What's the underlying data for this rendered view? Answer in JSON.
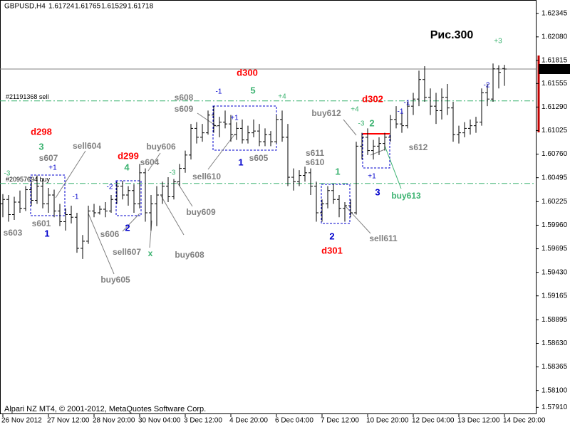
{
  "chart_data": {
    "type": "ohlc",
    "symbol": "GBPUSD,H4",
    "title": "Рис.300",
    "footer": "Alpari NZ MT4, © 2001-2012, MetaQuotes Software Corp.",
    "color": "#000000",
    "grid": false,
    "categories": [
      "26 Nov 2012",
      null,
      null,
      null,
      null,
      null,
      null,
      null,
      "27 Nov 12:00",
      null,
      null,
      null,
      null,
      null,
      null,
      null,
      "28 Nov 20:00",
      null,
      null,
      null,
      null,
      null,
      null,
      null,
      "30 Nov 04:00",
      null,
      null,
      null,
      null,
      null,
      null,
      null,
      "3 Dec 12:00",
      null,
      null,
      null,
      null,
      null,
      null,
      null,
      "4 Dec 20:00",
      null,
      null,
      null,
      null,
      null,
      null,
      null,
      "6 Dec 04:00",
      null,
      null,
      null,
      null,
      null,
      null,
      null,
      "7 Dec 12:00",
      null,
      null,
      null,
      null,
      null,
      null,
      null,
      "10 Dec 20:00",
      null,
      null,
      null,
      null,
      null,
      null,
      null,
      "12 Dec 04:00",
      null,
      null,
      null,
      null,
      null,
      null,
      null,
      "13 Dec 12:00",
      null,
      null,
      null,
      null,
      null,
      null,
      null,
      "14 Dec 20:00"
    ],
    "open": [
      1.602,
      1.6025,
      1.6008,
      1.6022,
      1.6015,
      1.6036,
      1.6024,
      1.604,
      1.602,
      1.603,
      1.6012,
      1.6,
      1.6008,
      1.6005,
      1.597,
      1.5978,
      1.6012,
      1.601,
      1.6014,
      1.6012,
      1.6025,
      1.604,
      1.603,
      1.6035,
      1.602,
      1.6055,
      1.601,
      1.602,
      1.603,
      1.604,
      1.6028,
      1.6045,
      1.606,
      1.6075,
      1.6105,
      1.6095,
      1.61,
      1.612,
      1.6108,
      1.6112,
      1.611,
      1.6098,
      1.6105,
      1.6092,
      1.61,
      1.6102,
      1.609,
      1.6098,
      1.609,
      1.6115,
      1.6095,
      1.605,
      1.6045,
      1.6052,
      1.6055,
      1.604,
      1.601,
      1.602,
      1.6035,
      1.6025,
      1.6015,
      1.6018,
      1.601,
      1.6085,
      1.6095,
      1.608,
      1.6085,
      1.6088,
      1.6095,
      1.6115,
      1.611,
      1.6108,
      1.613,
      1.6138,
      1.616,
      1.614,
      1.613,
      1.6125,
      1.614,
      1.6128,
      1.6098,
      1.61,
      1.6105,
      1.6108,
      1.6112,
      1.6145,
      1.6138,
      1.6172,
      1.61724
    ],
    "high": [
      1.6031,
      1.603,
      1.6028,
      1.6035,
      1.604,
      1.6045,
      1.6052,
      1.6048,
      1.6038,
      1.6036,
      1.602,
      1.6015,
      1.6018,
      1.601,
      1.5985,
      1.6018,
      1.602,
      1.6018,
      1.6022,
      1.603,
      1.6045,
      1.6046,
      1.604,
      1.6042,
      1.6065,
      1.606,
      1.603,
      1.604,
      1.6045,
      1.605,
      1.6048,
      1.6065,
      1.608,
      1.611,
      1.6112,
      1.611,
      1.6125,
      1.613,
      1.6118,
      1.6125,
      1.612,
      1.6112,
      1.6115,
      1.6108,
      1.6115,
      1.611,
      1.6105,
      1.6102,
      1.612,
      1.6125,
      1.611,
      1.606,
      1.6058,
      1.6062,
      1.606,
      1.6045,
      1.6025,
      1.604,
      1.6042,
      1.603,
      1.6022,
      1.6025,
      1.609,
      1.61,
      1.6105,
      1.6092,
      1.6095,
      1.61,
      1.612,
      1.613,
      1.6125,
      1.6135,
      1.6145,
      1.617,
      1.6175,
      1.615,
      1.6145,
      1.615,
      1.6155,
      1.6135,
      1.6108,
      1.6112,
      1.6115,
      1.6118,
      1.615,
      1.6155,
      1.6178,
      1.6176,
      1.61765
    ],
    "low": [
      1.6005,
      1.6,
      1.6002,
      1.601,
      1.6012,
      1.6018,
      1.602,
      1.6015,
      1.601,
      1.6005,
      1.5995,
      1.599,
      1.5998,
      1.5965,
      1.5958,
      1.5975,
      1.6005,
      1.6008,
      1.6005,
      1.601,
      1.602,
      1.6025,
      1.6018,
      1.601,
      1.6015,
      1.6,
      1.599,
      1.5995,
      1.602,
      1.6022,
      1.6025,
      1.604,
      1.6055,
      1.607,
      1.6088,
      1.609,
      1.6098,
      1.61,
      1.6095,
      1.6105,
      1.609,
      1.6092,
      1.6088,
      1.6088,
      1.6095,
      1.6085,
      1.6085,
      1.6085,
      1.6088,
      1.609,
      1.604,
      1.6035,
      1.604,
      1.6045,
      1.603,
      1.6,
      1.6,
      1.6015,
      1.602,
      1.6005,
      1.6,
      1.6005,
      1.6008,
      1.607,
      1.6075,
      1.607,
      1.6075,
      1.608,
      1.609,
      1.6105,
      1.61,
      1.6105,
      1.612,
      1.613,
      1.6135,
      1.612,
      1.611,
      1.6115,
      1.612,
      1.609,
      1.6088,
      1.6095,
      1.6098,
      1.61,
      1.6108,
      1.613,
      1.6135,
      1.615,
      1.61529
    ],
    "close": [
      1.6025,
      1.6008,
      1.6022,
      1.6015,
      1.6036,
      1.6024,
      1.604,
      1.602,
      1.603,
      1.6012,
      1.6,
      1.6008,
      1.6005,
      1.597,
      1.5978,
      1.6012,
      1.601,
      1.6014,
      1.6012,
      1.6025,
      1.604,
      1.603,
      1.6035,
      1.602,
      1.6055,
      1.601,
      1.602,
      1.603,
      1.604,
      1.6028,
      1.6045,
      1.606,
      1.6075,
      1.6105,
      1.6095,
      1.61,
      1.612,
      1.6108,
      1.6112,
      1.611,
      1.6098,
      1.6105,
      1.6092,
      1.61,
      1.6102,
      1.609,
      1.6098,
      1.609,
      1.6115,
      1.6095,
      1.605,
      1.6045,
      1.6052,
      1.6055,
      1.604,
      1.601,
      1.602,
      1.6035,
      1.6025,
      1.6015,
      1.6018,
      1.601,
      1.6085,
      1.6095,
      1.608,
      1.6085,
      1.6088,
      1.6095,
      1.6115,
      1.611,
      1.6108,
      1.613,
      1.6138,
      1.616,
      1.614,
      1.613,
      1.6125,
      1.614,
      1.6128,
      1.6098,
      1.61,
      1.6105,
      1.6108,
      1.6112,
      1.6145,
      1.6138,
      1.6172,
      1.6168,
      1.61718
    ],
    "ylim": [
      1.57833,
      1.62495
    ],
    "yticks": [
      {
        "value": 1.62345,
        "label": "1.62345"
      },
      {
        "value": 1.6208,
        "label": "1.62080"
      },
      {
        "value": 1.61815,
        "label": "1.61815"
      },
      {
        "value": 1.61555,
        "label": "1.61555"
      },
      {
        "value": 1.6129,
        "label": "1.61290"
      },
      {
        "value": 1.61025,
        "label": "1.61025"
      },
      {
        "value": 1.6076,
        "label": "1.60760"
      },
      {
        "value": 1.60495,
        "label": "1.60495"
      },
      {
        "value": 1.60225,
        "label": "1.60225"
      },
      {
        "value": 1.5996,
        "label": "1.59960"
      },
      {
        "value": 1.59695,
        "label": "1.59695"
      },
      {
        "value": 1.5943,
        "label": "1.59430"
      },
      {
        "value": 1.59165,
        "label": "1.59165"
      },
      {
        "value": 1.58895,
        "label": "1.58895"
      },
      {
        "value": 1.5863,
        "label": "1.58630"
      },
      {
        "value": 1.58365,
        "label": "1.58365"
      },
      {
        "value": 1.581,
        "label": "1.58100"
      },
      {
        "value": 1.5791,
        "label": "1.57910"
      }
    ],
    "levels": [
      {
        "value": 1.6136,
        "label": "#21191368 sell",
        "color": "#3cb371"
      },
      {
        "value": 1.6043,
        "label": "#20957694 buy",
        "color": "#3cb371"
      }
    ],
    "annotations": [
      {
        "text": "s603",
        "color": "#808080"
      },
      {
        "text": "s601",
        "color": "#808080"
      },
      {
        "text": "sell604",
        "color": "#808080"
      },
      {
        "text": "s607",
        "color": "#808080"
      },
      {
        "text": "s606",
        "color": "#808080"
      },
      {
        "text": "buy605",
        "color": "#808080"
      },
      {
        "text": "sell607",
        "color": "#808080"
      },
      {
        "text": "buy606",
        "color": "#808080"
      },
      {
        "text": "s604",
        "color": "#808080"
      },
      {
        "text": "buy609",
        "color": "#808080"
      },
      {
        "text": "buy608",
        "color": "#808080"
      },
      {
        "text": "s608",
        "color": "#808080"
      },
      {
        "text": "s609",
        "color": "#808080"
      },
      {
        "text": "sell610",
        "color": "#808080"
      },
      {
        "text": "s605",
        "color": "#808080"
      },
      {
        "text": "s611",
        "color": "#808080"
      },
      {
        "text": "s610",
        "color": "#808080"
      },
      {
        "text": "buy612",
        "color": "#808080"
      },
      {
        "text": "sell611",
        "color": "#808080"
      },
      {
        "text": "s612",
        "color": "#808080"
      },
      {
        "text": "d298",
        "color": "#ff0000"
      },
      {
        "text": "d299",
        "color": "#ff0000"
      },
      {
        "text": "d300",
        "color": "#ff0000"
      },
      {
        "text": "d301",
        "color": "#ff0000"
      },
      {
        "text": "d302",
        "color": "#ff0000"
      },
      {
        "text": "3",
        "color": "#3cb371"
      },
      {
        "text": "4",
        "color": "#3cb371"
      },
      {
        "text": "5",
        "color": "#3cb371"
      },
      {
        "text": "1",
        "color": "#3cb371"
      },
      {
        "text": "2",
        "color": "#3cb371"
      },
      {
        "text": "buy613",
        "color": "#3cb371"
      },
      {
        "text": "x",
        "color": "#3cb371"
      },
      {
        "text": "1",
        "color": "#0000cc"
      },
      {
        "text": "2",
        "color": "#0000cc"
      },
      {
        "text": "1",
        "color": "#0000cc"
      },
      {
        "text": "2",
        "color": "#0000cc"
      },
      {
        "text": "3",
        "color": "#0000cc"
      },
      {
        "text": "+1",
        "color": "#0000cc"
      },
      {
        "text": "-1",
        "color": "#0000cc"
      },
      {
        "text": "-2",
        "color": "#0000cc"
      },
      {
        "text": "-1",
        "color": "#0000cc"
      },
      {
        "text": "+1",
        "color": "#0000cc"
      },
      {
        "text": "+1",
        "color": "#0000cc"
      },
      {
        "text": "-1",
        "color": "#0000cc"
      },
      {
        "text": "-1",
        "color": "#0000cc"
      },
      {
        "text": "-2",
        "color": "#0000cc"
      },
      {
        "text": "-3",
        "color": "#3cb371"
      },
      {
        "text": "-3",
        "color": "#3cb371"
      },
      {
        "text": "+4",
        "color": "#3cb371"
      },
      {
        "text": "+4",
        "color": "#3cb371"
      },
      {
        "text": "-3",
        "color": "#3cb371"
      },
      {
        "text": "+3",
        "color": "#3cb371"
      },
      {
        "text": "Рис.300",
        "color": "#000000"
      }
    ]
  }
}
